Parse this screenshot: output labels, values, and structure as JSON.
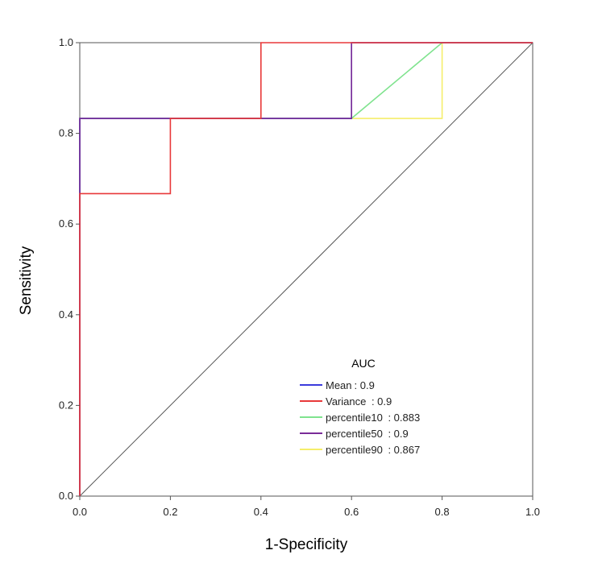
{
  "chart_data": {
    "type": "line",
    "xlabel": "1-Specificity",
    "ylabel": "Sensitivity",
    "xlim": [
      0,
      1
    ],
    "ylim": [
      0,
      1
    ],
    "xticks": [
      "0.0",
      "0.2",
      "0.4",
      "0.6",
      "0.8",
      "1.0"
    ],
    "yticks": [
      "0.0",
      "0.2",
      "0.4",
      "0.6",
      "0.8",
      "1.0"
    ],
    "grid": false,
    "legend": {
      "title": "AUC",
      "placement": "bottom-right"
    },
    "series": [
      {
        "name": "Mean",
        "auc_label": ": 0.9",
        "color": "#3b3bdc",
        "x": [
          0,
          0,
          0.6,
          0.6,
          1
        ],
        "y": [
          0,
          0.833,
          0.833,
          1,
          1
        ]
      },
      {
        "name": "Variance",
        "auc_label": " : 0.9",
        "color": "#e8393a",
        "x": [
          0,
          0,
          0.2,
          0.2,
          0.4,
          0.4,
          1
        ],
        "y": [
          0,
          0.667,
          0.667,
          0.833,
          0.833,
          1,
          1
        ]
      },
      {
        "name": "percentile10",
        "auc_label": " : 0.883",
        "color": "#7fe38e",
        "x": [
          0,
          0,
          0.6,
          0.8,
          1
        ],
        "y": [
          0,
          0.833,
          0.833,
          1,
          1
        ]
      },
      {
        "name": "percentile50",
        "auc_label": " : 0.9",
        "color": "#7a2c98",
        "x": [
          0,
          0,
          0.6,
          0.6,
          1
        ],
        "y": [
          0,
          0.833,
          0.833,
          1,
          1
        ]
      },
      {
        "name": "percentile90",
        "auc_label": " : 0.867",
        "color": "#f5ee6a",
        "x": [
          0,
          0,
          0.8,
          0.8,
          1
        ],
        "y": [
          0,
          0.833,
          0.833,
          1,
          1
        ]
      }
    ],
    "reference_line_color": "#555555"
  }
}
